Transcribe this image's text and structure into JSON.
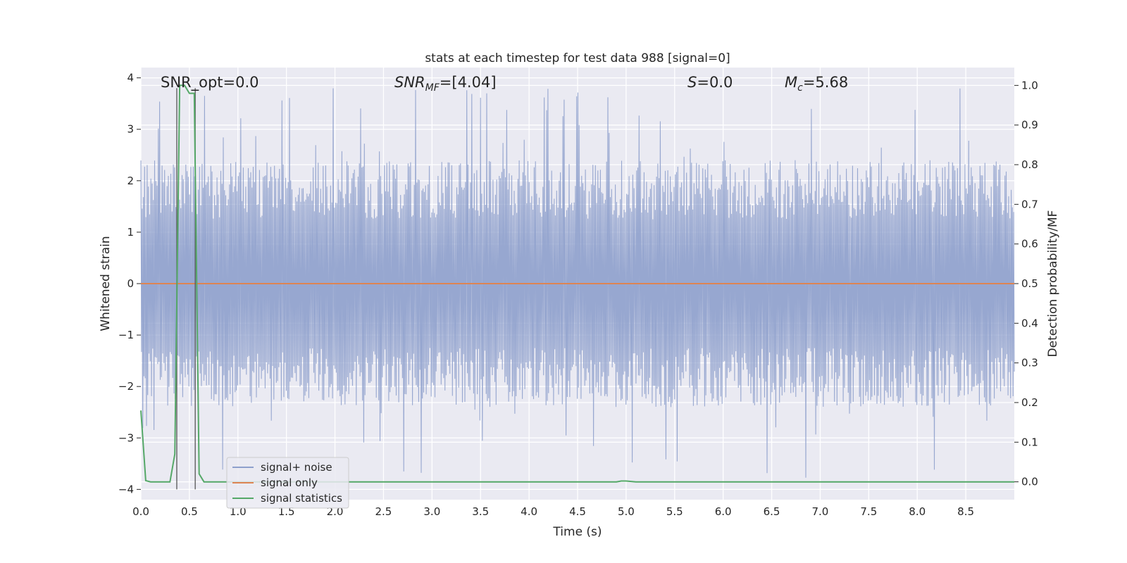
{
  "chart_data": {
    "type": "line",
    "title": "stats at each timestep for test data 988 [signal=0]",
    "xlabel": "Time (s)",
    "ylabel": "Whitened strain",
    "y2label": "Detection probability/MF",
    "xlim": [
      0,
      9.0
    ],
    "ylim": [
      -4.2,
      4.2
    ],
    "y2lim": [
      -0.045,
      1.045
    ],
    "xticks": [
      "0.0",
      "0.5",
      "1.0",
      "1.5",
      "2.0",
      "2.5",
      "3.0",
      "3.5",
      "4.0",
      "4.5",
      "5.0",
      "5.5",
      "6.0",
      "6.5",
      "7.0",
      "7.5",
      "8.0",
      "8.5"
    ],
    "yticks": [
      "4",
      "3",
      "2",
      "1",
      "0",
      "−1",
      "−2",
      "−3",
      "−4"
    ],
    "y2ticks": [
      "1.0",
      "0.9",
      "0.8",
      "0.7",
      "0.6",
      "0.5",
      "0.4",
      "0.3",
      "0.2",
      "0.1",
      "0.0"
    ],
    "grid": true,
    "legend_position": "lower-left",
    "annotations": {
      "snr_opt": "SNR_opt=0.0",
      "snr_mf_main": "SNR",
      "snr_mf_sub": "MF",
      "snr_mf_value": "=[4.04]",
      "s_main": "S",
      "s_value": "=0.0",
      "mc_main": "M",
      "mc_sub": "c",
      "mc_value": "=5.68"
    },
    "series": [
      {
        "name": "signal+ noise",
        "color": "#8ea0cc",
        "description_values": "whitened strain noise, amplitude mostly within ±2.5, occasional peaks to ±4"
      },
      {
        "name": "signal only",
        "color": "#dd8452",
        "x": [
          0,
          9.0
        ],
        "y": [
          0,
          0
        ]
      },
      {
        "name": "signal statistics",
        "color": "#55a868",
        "axis": "right",
        "x": [
          0.0,
          0.05,
          0.1,
          0.15,
          0.2,
          0.25,
          0.3,
          0.35,
          0.4,
          0.45,
          0.5,
          0.55,
          0.6,
          0.65,
          0.7,
          0.75,
          0.8,
          1.0,
          2.0,
          3.0,
          4.0,
          4.9,
          4.95,
          5.0,
          5.05,
          5.1,
          6.0,
          7.0,
          8.0,
          9.0
        ],
        "y": [
          0.18,
          0.003,
          0.0,
          0.0,
          0.0,
          0.0,
          0.0,
          0.07,
          1.0,
          1.0,
          0.98,
          0.98,
          0.02,
          0.0,
          0.0,
          0.0,
          0.0,
          0.0,
          0.0,
          0.0,
          0.0,
          0.0,
          0.002,
          0.002,
          0.001,
          0.0,
          0.0,
          0.0,
          0.0,
          0.0
        ]
      }
    ],
    "vlines": [
      0.37,
      0.56
    ]
  }
}
